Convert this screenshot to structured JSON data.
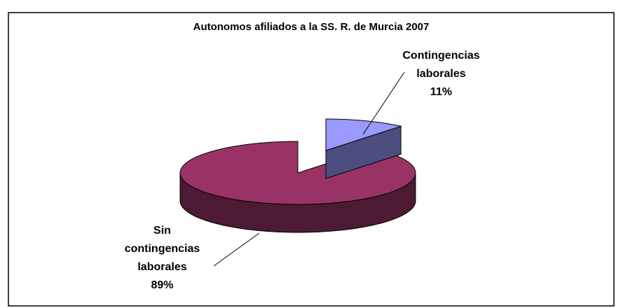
{
  "chart_data": {
    "type": "pie",
    "title": "Autonomos afiliados a la SS. R. de Murcia 2007",
    "categories": [
      "Contingencias laborales",
      "Sin contingencias laborales"
    ],
    "values": [
      11,
      89
    ],
    "value_labels": [
      "11%",
      "89%"
    ],
    "colors": [
      "#9999ff",
      "#993366"
    ]
  }
}
